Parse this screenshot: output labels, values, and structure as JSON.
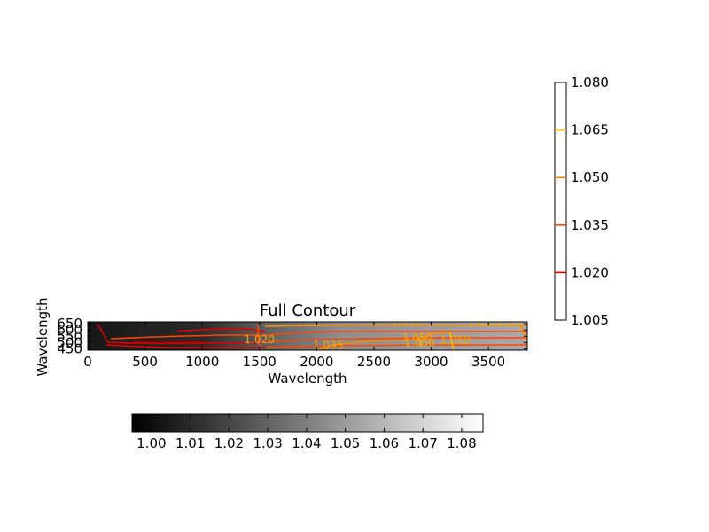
{
  "chart_data": {
    "type": "heatmap",
    "title": "Full Contour",
    "xlabel": "Wavelength",
    "ylabel": "Wavelength",
    "xlim": [
      0,
      3840
    ],
    "ylim": [
      440,
      665
    ],
    "x_ticks": [
      0,
      500,
      1000,
      1500,
      2000,
      2500,
      3000,
      3500
    ],
    "y_ticks": [
      450,
      500,
      550,
      600,
      650
    ],
    "y_tick_labels": [
      "450",
      "500",
      "550",
      "600",
      "650"
    ],
    "colormap": "gray",
    "background_field": {
      "description": "grayscale intensity, darker at low x, lighter at high x",
      "x_stops": [
        0,
        1000,
        1600,
        2200,
        3000,
        3840
      ],
      "values": [
        1.003,
        1.01,
        1.03,
        1.045,
        1.05,
        1.055
      ]
    },
    "contour_levels": [
      1.005,
      1.02,
      1.035,
      1.05,
      1.065,
      1.08
    ],
    "contour_colors": [
      "#8b0000",
      "#e00000",
      "#ff4500",
      "#ff8c00",
      "#ffc000",
      "#fff000"
    ],
    "contour_labels": [
      {
        "text": "1.035",
        "x": 2780,
        "y": 660
      },
      {
        "text": "1.035",
        "x": 3450,
        "y": 660
      },
      {
        "text": "1.05",
        "x": 3680,
        "y": 660
      },
      {
        "text": "1.035",
        "x": 2100,
        "y": 477
      },
      {
        "text": "1.020",
        "x": 1500,
        "y": 525
      },
      {
        "text": "1.050",
        "x": 2880,
        "y": 540
      },
      {
        "text": "1.050",
        "x": 2900,
        "y": 500
      },
      {
        "text": "1.050",
        "x": 3210,
        "y": 520
      }
    ],
    "colorbar_horizontal": {
      "orientation": "horizontal",
      "range": [
        0.995,
        1.0855
      ],
      "ticks": [
        1.0,
        1.01,
        1.02,
        1.03,
        1.04,
        1.05,
        1.06,
        1.07,
        1.08
      ],
      "tick_labels": [
        "1.00",
        "1.01",
        "1.02",
        "1.03",
        "1.04",
        "1.05",
        "1.06",
        "1.07",
        "1.08"
      ]
    },
    "colorbar_vertical": {
      "orientation": "vertical",
      "range": [
        1.005,
        1.08
      ],
      "levels": [
        1.02,
        1.035,
        1.05,
        1.065
      ],
      "level_colors": [
        "#e00000",
        "#ff4500",
        "#ff8c00",
        "#ffc000"
      ],
      "tick_labels": [
        "1.005",
        "1.020",
        "1.035",
        "1.050",
        "1.065",
        "1.080"
      ],
      "tick_values": [
        1.005,
        1.02,
        1.035,
        1.05,
        1.065,
        1.08
      ]
    }
  }
}
